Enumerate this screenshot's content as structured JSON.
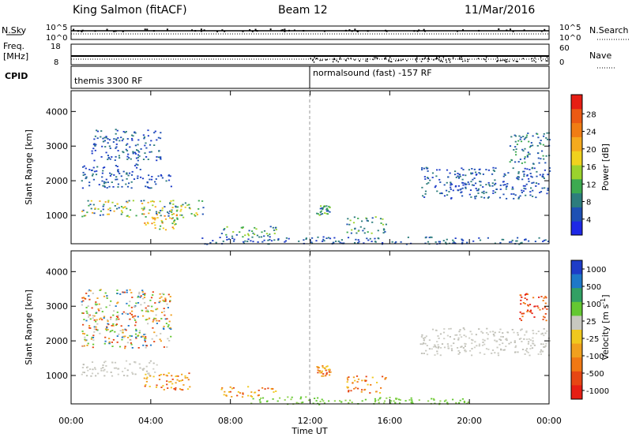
{
  "header": {
    "station": "King Salmon (fitACF)",
    "beam": "Beam 12",
    "date": "11/Mar/2016"
  },
  "strips": {
    "nsky_label": "N.Sky",
    "nsearch_label": "N.Search",
    "freq_label_1": "Freq.",
    "freq_label_2": "[MHz]",
    "nave_label": "Nave",
    "cpid_label": "CPID",
    "noise_left_ticks": [
      "10^5",
      "10^0"
    ],
    "noise_right_ticks": [
      "10^5",
      "10^0"
    ],
    "freq_left_ticks": [
      "18",
      "8"
    ],
    "nave_right_ticks": [
      "60",
      "0"
    ],
    "cpid_programs": [
      "themis 3300 RF",
      "normalsound (fast) -157 RF"
    ]
  },
  "x_axis": {
    "label": "Time UT",
    "ticks": [
      "00:00",
      "04:00",
      "08:00",
      "12:00",
      "16:00",
      "20:00",
      "00:00"
    ],
    "hours": [
      0,
      4,
      8,
      12,
      16,
      20,
      24
    ]
  },
  "chart_data": [
    {
      "type": "heatmap",
      "panel": "power",
      "xlabel": "Time UT",
      "ylabel": "Slant Range [km]",
      "xlim_hours": [
        0,
        24
      ],
      "ylim_km": [
        180,
        4600
      ],
      "y_ticks": [
        1000,
        2000,
        3000,
        4000
      ],
      "colorbar": {
        "label": "Power [dB]",
        "ticks": [
          "4",
          "8",
          "12",
          "16",
          "20",
          "24",
          "28"
        ],
        "colors": [
          "#1e28e6",
          "#1e50b4",
          "#2d7d7d",
          "#3caa50",
          "#9bd22d",
          "#f0d21e",
          "#f5aa1e",
          "#f07d14",
          "#eb5a14",
          "#e61e14"
        ]
      },
      "scatter_regions": [
        {
          "t": [
            0.5,
            6.7
          ],
          "r": [
            960,
            1450
          ],
          "level": "mixed-high"
        },
        {
          "t": [
            3.5,
            5.3
          ],
          "r": [
            600,
            1100
          ],
          "level": "high"
        },
        {
          "t": [
            0.5,
            3.5
          ],
          "r": [
            2200,
            2500
          ],
          "level": "low"
        },
        {
          "t": [
            0.5,
            5.0
          ],
          "r": [
            1800,
            2200
          ],
          "level": "low"
        },
        {
          "t": [
            1.0,
            4.5
          ],
          "r": [
            2600,
            3500
          ],
          "level": "low"
        },
        {
          "t": [
            7.5,
            10.5
          ],
          "r": [
            400,
            700
          ],
          "level": "mid"
        },
        {
          "t": [
            12.3,
            13.0
          ],
          "r": [
            1000,
            1300
          ],
          "level": "mid"
        },
        {
          "t": [
            13.8,
            15.8
          ],
          "r": [
            500,
            1000
          ],
          "level": "mid"
        },
        {
          "t": [
            6.5,
            24.0
          ],
          "r": [
            180,
            400
          ],
          "level": "low"
        },
        {
          "t": [
            17.5,
            24.0
          ],
          "r": [
            1500,
            2400
          ],
          "level": "low"
        },
        {
          "t": [
            22.0,
            24.0
          ],
          "r": [
            2500,
            3400
          ],
          "level": "low-mid"
        }
      ]
    },
    {
      "type": "heatmap",
      "panel": "velocity",
      "xlabel": "Time UT",
      "ylabel": "Slant Range [km]",
      "xlim_hours": [
        0,
        24
      ],
      "ylim_km": [
        180,
        4600
      ],
      "y_ticks": [
        1000,
        2000,
        3000,
        4000
      ],
      "colorbar": {
        "label": "Velocity [m s^-1]",
        "ticks": [
          "1000",
          "500",
          "100",
          "25",
          "-25",
          "-100",
          "-500",
          "-1000"
        ],
        "colors": [
          "#1e3cc8",
          "#1e78c8",
          "#32a064",
          "#64c832",
          "#c8c8c0",
          "#f0c81e",
          "#f0a01e",
          "#f07814",
          "#e64614",
          "#e61e14"
        ]
      },
      "scatter_regions": [
        {
          "t": [
            0.5,
            4.3
          ],
          "r": [
            1000,
            1450
          ],
          "level": "grey"
        },
        {
          "t": [
            3.6,
            6.0
          ],
          "r": [
            600,
            1100
          ],
          "level": "orange"
        },
        {
          "t": [
            7.5,
            10.5
          ],
          "r": [
            400,
            700
          ],
          "level": "orange"
        },
        {
          "t": [
            12.3,
            13.0
          ],
          "r": [
            1000,
            1300
          ],
          "level": "orange"
        },
        {
          "t": [
            13.8,
            15.8
          ],
          "r": [
            500,
            1000
          ],
          "level": "orange"
        },
        {
          "t": [
            9.0,
            20.0
          ],
          "r": [
            180,
            400
          ],
          "level": "green"
        },
        {
          "t": [
            17.5,
            24.0
          ],
          "r": [
            1600,
            2400
          ],
          "level": "grey"
        },
        {
          "t": [
            22.5,
            24.0
          ],
          "r": [
            2600,
            3400
          ],
          "level": "red"
        },
        {
          "t": [
            0.5,
            5.0
          ],
          "r": [
            1800,
            3500
          ],
          "level": "mixed"
        }
      ]
    }
  ]
}
